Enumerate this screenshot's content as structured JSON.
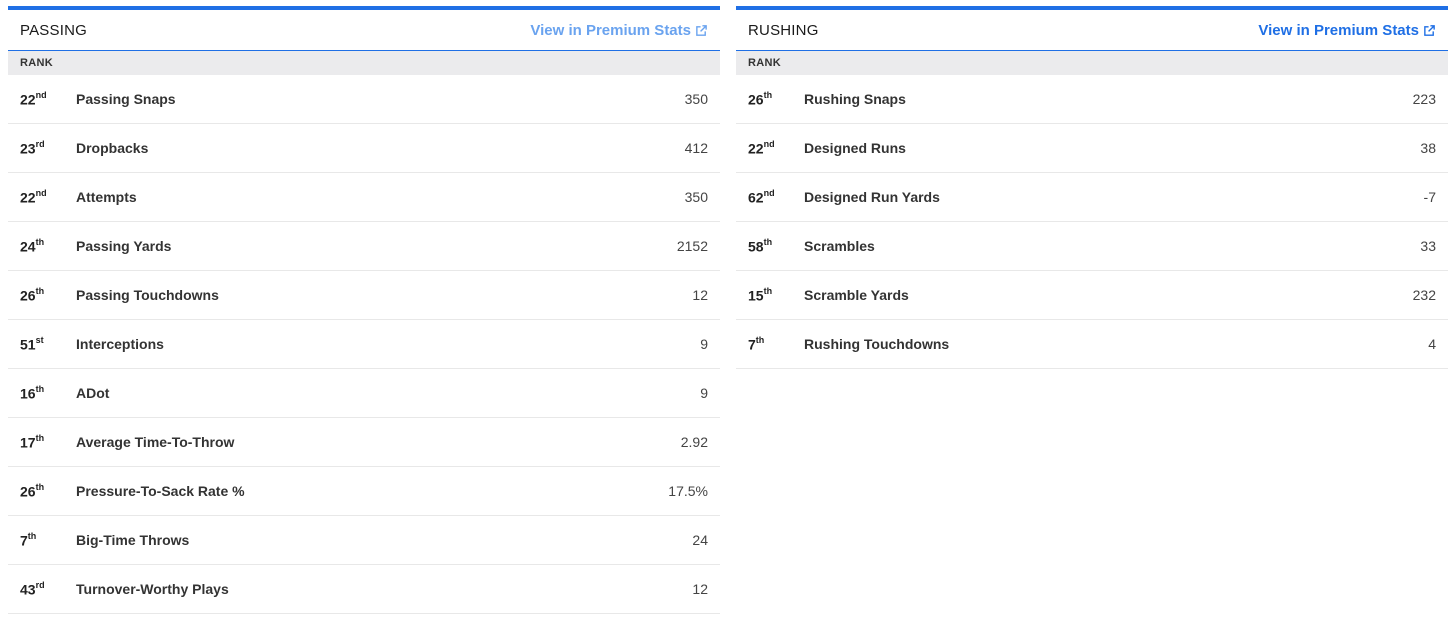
{
  "passing": {
    "title": "PASSING",
    "link_label": "View in Premium Stats",
    "rank_header": "RANK",
    "rows": [
      {
        "rank": "22",
        "suffix": "nd",
        "name": "Passing Snaps",
        "value": "350"
      },
      {
        "rank": "23",
        "suffix": "rd",
        "name": "Dropbacks",
        "value": "412"
      },
      {
        "rank": "22",
        "suffix": "nd",
        "name": "Attempts",
        "value": "350"
      },
      {
        "rank": "24",
        "suffix": "th",
        "name": "Passing Yards",
        "value": "2152"
      },
      {
        "rank": "26",
        "suffix": "th",
        "name": "Passing Touchdowns",
        "value": "12"
      },
      {
        "rank": "51",
        "suffix": "st",
        "name": "Interceptions",
        "value": "9"
      },
      {
        "rank": "16",
        "suffix": "th",
        "name": "ADot",
        "value": "9"
      },
      {
        "rank": "17",
        "suffix": "th",
        "name": "Average Time-To-Throw",
        "value": "2.92"
      },
      {
        "rank": "26",
        "suffix": "th",
        "name": "Pressure-To-Sack Rate %",
        "value": "17.5%"
      },
      {
        "rank": "7",
        "suffix": "th",
        "name": "Big-Time Throws",
        "value": "24"
      },
      {
        "rank": "43",
        "suffix": "rd",
        "name": "Turnover-Worthy Plays",
        "value": "12"
      }
    ]
  },
  "rushing": {
    "title": "RUSHING",
    "link_label": "View in Premium Stats",
    "rank_header": "RANK",
    "rows": [
      {
        "rank": "26",
        "suffix": "th",
        "name": "Rushing Snaps",
        "value": "223"
      },
      {
        "rank": "22",
        "suffix": "nd",
        "name": "Designed Runs",
        "value": "38"
      },
      {
        "rank": "62",
        "suffix": "nd",
        "name": "Designed Run Yards",
        "value": "-7"
      },
      {
        "rank": "58",
        "suffix": "th",
        "name": "Scrambles",
        "value": "33"
      },
      {
        "rank": "15",
        "suffix": "th",
        "name": "Scramble Yards",
        "value": "232"
      },
      {
        "rank": "7",
        "suffix": "th",
        "name": "Rushing Touchdowns",
        "value": "4"
      }
    ]
  },
  "colors": {
    "accent": "#1f6fe5",
    "accent_light": "#6aa3ef",
    "rank_header_bg": "#ebebed"
  },
  "icons": {
    "premium_link": "external-link-icon"
  }
}
